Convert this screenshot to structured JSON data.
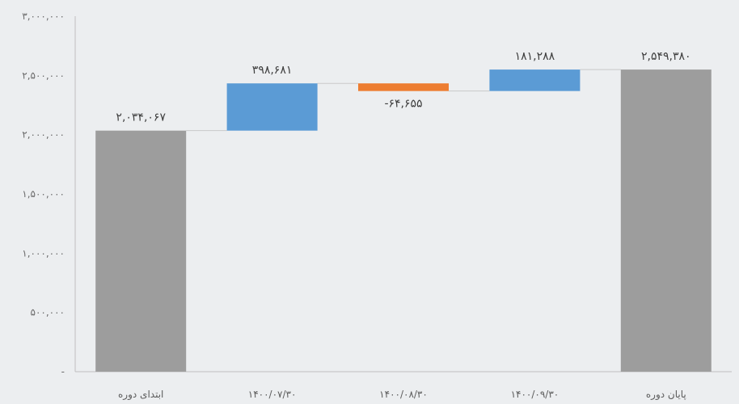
{
  "chart_data": {
    "type": "bar",
    "subtype": "waterfall",
    "title": "",
    "xlabel": "",
    "ylabel": "",
    "ylim": [
      0,
      3000000
    ],
    "y_ticks": [
      0,
      500000,
      1000000,
      1500000,
      2000000,
      2500000,
      3000000
    ],
    "y_tick_labels": [
      "-",
      "۵۰۰,۰۰۰",
      "۱,۰۰۰,۰۰۰",
      "۱,۵۰۰,۰۰۰",
      "۲,۰۰۰,۰۰۰",
      "۲,۵۰۰,۰۰۰",
      "۳,۰۰۰,۰۰۰"
    ],
    "grid": false,
    "categories": [
      "ابتدای دوره",
      "۱۴۰۰/۰۷/۳۰",
      "۱۴۰۰/۰۸/۳۰",
      "۱۴۰۰/۰۹/۳۰",
      "پایان دوره"
    ],
    "values": [
      2034067,
      398681,
      -64655,
      181288,
      2549380
    ],
    "kinds": [
      "total",
      "delta",
      "delta",
      "delta",
      "total"
    ],
    "data_labels": [
      "۲,۰۳۴,۰۶۷",
      "۳۹۸,۶۸۱",
      "-۶۴,۶۵۵",
      "۱۸۱,۲۸۸",
      "۲,۵۴۹,۳۸۰"
    ],
    "colors": {
      "total": "#9d9d9d",
      "increase": "#5b9bd5",
      "decrease": "#ed7d31",
      "connector": "#c9c9c9",
      "axis": "#bfbfbf"
    }
  }
}
